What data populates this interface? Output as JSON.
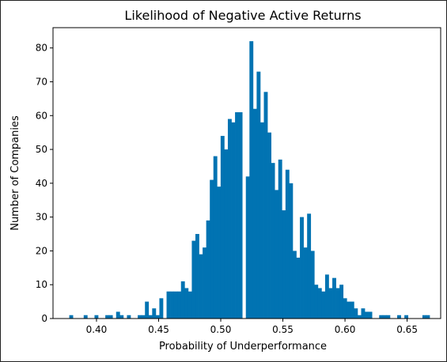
{
  "chart_data": {
    "type": "bar",
    "title": "Likelihood of Negative Active Returns",
    "xlabel": "Probability of Underperformance",
    "ylabel": "Number of Companies",
    "xlim": [
      0.365,
      0.677
    ],
    "ylim": [
      0,
      86
    ],
    "xticks": [
      0.4,
      0.45,
      0.5,
      0.55,
      0.6,
      0.65
    ],
    "xtick_labels": [
      "0.40",
      "0.45",
      "0.50",
      "0.55",
      "0.60",
      "0.65"
    ],
    "yticks": [
      0,
      10,
      20,
      30,
      40,
      50,
      60,
      70,
      80
    ],
    "ytick_labels": [
      "0",
      "10",
      "20",
      "30",
      "40",
      "50",
      "60",
      "70",
      "80"
    ],
    "grid": false,
    "bar_color": "#0173b2",
    "bin_width": 0.0029,
    "bin_starts": [
      0.3781,
      0.381,
      0.3839,
      0.3868,
      0.3897,
      0.3926,
      0.3955,
      0.3984,
      0.4013,
      0.4042,
      0.4071,
      0.41,
      0.4129,
      0.4158,
      0.4187,
      0.4216,
      0.4245,
      0.4274,
      0.4303,
      0.4332,
      0.4361,
      0.439,
      0.4419,
      0.4448,
      0.4477,
      0.4506,
      0.4535,
      0.4564,
      0.4593,
      0.4622,
      0.4651,
      0.468,
      0.4709,
      0.4738,
      0.4767,
      0.4796,
      0.4825,
      0.4854,
      0.4883,
      0.4912,
      0.4941,
      0.497,
      0.4999,
      0.5028,
      0.5057,
      0.5086,
      0.5115,
      0.5144,
      0.5173,
      0.5202,
      0.5231,
      0.526,
      0.5289,
      0.5318,
      0.5347,
      0.5376,
      0.5405,
      0.5434,
      0.5463,
      0.5492,
      0.5521,
      0.555,
      0.5579,
      0.5608,
      0.5637,
      0.5666,
      0.5695,
      0.5724,
      0.5753,
      0.5782,
      0.5811,
      0.584,
      0.5869,
      0.5898,
      0.5927,
      0.5956,
      0.5985,
      0.6014,
      0.6043,
      0.6072,
      0.6101,
      0.613,
      0.6159,
      0.6188,
      0.6217,
      0.6246,
      0.6275,
      0.6304,
      0.6333,
      0.6362,
      0.6391,
      0.642,
      0.6449,
      0.6478,
      0.6507,
      0.6536,
      0.6565,
      0.6594,
      0.6623,
      0.6652
    ],
    "counts": [
      1,
      0,
      0,
      0,
      1,
      0,
      0,
      1,
      0,
      0,
      1,
      1,
      0,
      2,
      1,
      0,
      1,
      0,
      0,
      1,
      1,
      5,
      1,
      3,
      1,
      6,
      0,
      8,
      8,
      8,
      8,
      11,
      9,
      8,
      23,
      25,
      19,
      21,
      29,
      41,
      48,
      39,
      54,
      50,
      59,
      58,
      61,
      61,
      0,
      42,
      82,
      62,
      73,
      58,
      67,
      55,
      46,
      38,
      47,
      32,
      44,
      40,
      20,
      18,
      30,
      21,
      31,
      20,
      10,
      9,
      8,
      13,
      9,
      12,
      9,
      10,
      6,
      5,
      5,
      3,
      1,
      3,
      2,
      2,
      0,
      0,
      1,
      1,
      1,
      0,
      0,
      1,
      0,
      1,
      0,
      0,
      0,
      0,
      1,
      1
    ]
  }
}
